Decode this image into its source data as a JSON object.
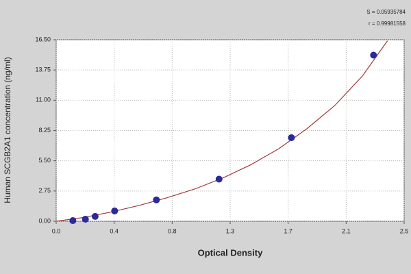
{
  "chart_data": {
    "type": "scatter",
    "xlabel": "Optical Density",
    "ylabel": "Human SCGB2A1 concentration (ng/ml)",
    "annotations": [
      "S = 0.05935784",
      "r = 0.99981558"
    ],
    "x": [
      0.12,
      0.21,
      0.28,
      0.42,
      0.72,
      1.17,
      1.69,
      2.28
    ],
    "values": [
      0.06,
      0.19,
      0.44,
      0.94,
      1.94,
      3.83,
      7.6,
      15.1
    ],
    "color": "#2a2a9a",
    "curve": {
      "x": [
        0,
        0.2,
        0.4,
        0.6,
        0.8,
        1.0,
        1.2,
        1.4,
        1.6,
        1.8,
        2.0,
        2.2,
        2.38
      ],
      "y": [
        0,
        0.35,
        0.85,
        1.45,
        2.15,
        2.95,
        3.95,
        5.15,
        6.6,
        8.4,
        10.5,
        13.2,
        16.4
      ],
      "color": "#a03a3a"
    },
    "xlim": [
      0,
      2.5
    ],
    "xticks": [
      {
        "value": 0,
        "label": "0.0"
      },
      {
        "value": 0.4167,
        "label": "0.4"
      },
      {
        "value": 0.8333,
        "label": "0.8"
      },
      {
        "value": 1.25,
        "label": "1.3"
      },
      {
        "value": 1.6667,
        "label": "1.7"
      },
      {
        "value": 2.0833,
        "label": "2.1"
      },
      2.5
    ],
    "ylim": [
      0,
      16.5
    ],
    "yticks": [
      {
        "value": 0,
        "label": "0.00"
      },
      {
        "value": 2.75,
        "label": "2.75"
      },
      {
        "value": 5.5,
        "label": "5.50"
      },
      {
        "value": 8.25,
        "label": "8.25"
      },
      {
        "value": 11,
        "label": "11.00"
      },
      {
        "value": 13.75,
        "label": "13.75"
      },
      {
        "value": 16.5,
        "label": "16.50"
      }
    ],
    "grid": true
  }
}
